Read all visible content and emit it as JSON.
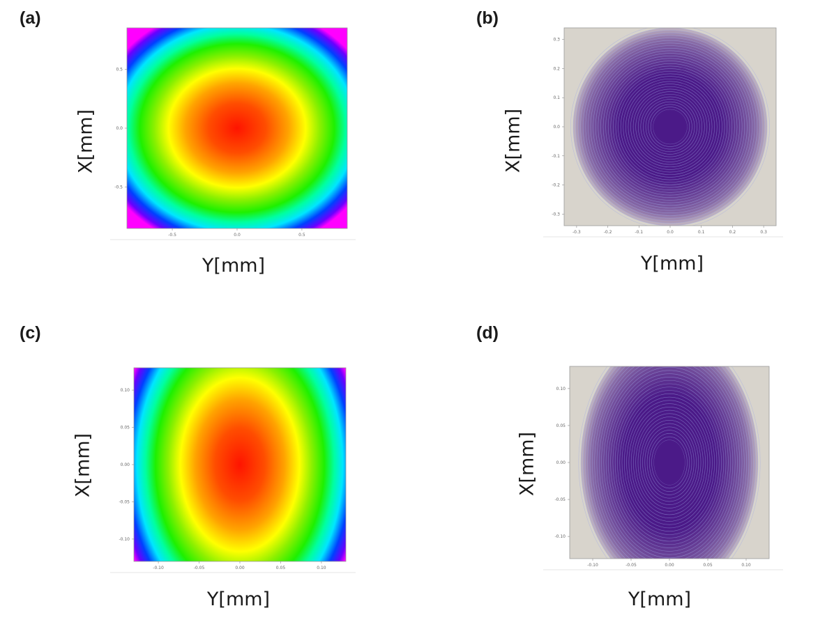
{
  "chart_data": [
    {
      "id": "a",
      "type": "heatmap",
      "panel_label": "(a)",
      "xlabel": "Y[mm]",
      "ylabel": "X[mm]",
      "colormap": "rainbow",
      "xlim": [
        -0.85,
        0.85
      ],
      "ylim": [
        -0.85,
        0.85
      ],
      "x_ticks": [
        "-0.5",
        "0.0",
        "0.5"
      ],
      "y_ticks": [
        "0.5",
        "0.0",
        "-0.5"
      ],
      "center": [
        0,
        0
      ],
      "peak_color": "#ff1a00"
    },
    {
      "id": "b",
      "type": "heatmap",
      "panel_label": "(b)",
      "xlabel": "Y[mm]",
      "ylabel": "X[mm]",
      "colormap": "purple-contour",
      "xlim": [
        -0.34,
        0.34
      ],
      "ylim": [
        -0.34,
        0.34
      ],
      "x_ticks": [
        "-0.3",
        "-0.2",
        "-0.1",
        "0.0",
        "0.1",
        "0.2",
        "0.3"
      ],
      "y_ticks": [
        "0.3",
        "0.2",
        "0.1",
        "0.0",
        "-0.1",
        "-0.2",
        "-0.3"
      ],
      "center": [
        0,
        0
      ],
      "peak_color": "#4b1a88"
    },
    {
      "id": "c",
      "type": "heatmap",
      "panel_label": "(c)",
      "xlabel": "Y[mm]",
      "ylabel": "X[mm]",
      "colormap": "rainbow",
      "xlim": [
        -0.13,
        0.13
      ],
      "ylim": [
        -0.13,
        0.13
      ],
      "x_ticks": [
        "-0.10",
        "-0.05",
        "0.00",
        "0.05",
        "0.10"
      ],
      "y_ticks": [
        "0.10",
        "0.05",
        "0.00",
        "-0.05",
        "-0.10"
      ],
      "center": [
        0,
        0
      ],
      "peak_color": "#ff1a00"
    },
    {
      "id": "d",
      "type": "heatmap",
      "panel_label": "(d)",
      "xlabel": "Y[mm]",
      "ylabel": "X[mm]",
      "colormap": "purple-contour",
      "xlim": [
        -0.13,
        0.13
      ],
      "ylim": [
        -0.13,
        0.13
      ],
      "x_ticks": [
        "-0.10",
        "-0.05",
        "0.00",
        "0.05",
        "0.10"
      ],
      "y_ticks": [
        "0.10",
        "0.05",
        "0.00",
        "-0.05",
        "-0.10"
      ],
      "center": [
        0,
        0
      ],
      "peak_color": "#4b1a88"
    }
  ]
}
